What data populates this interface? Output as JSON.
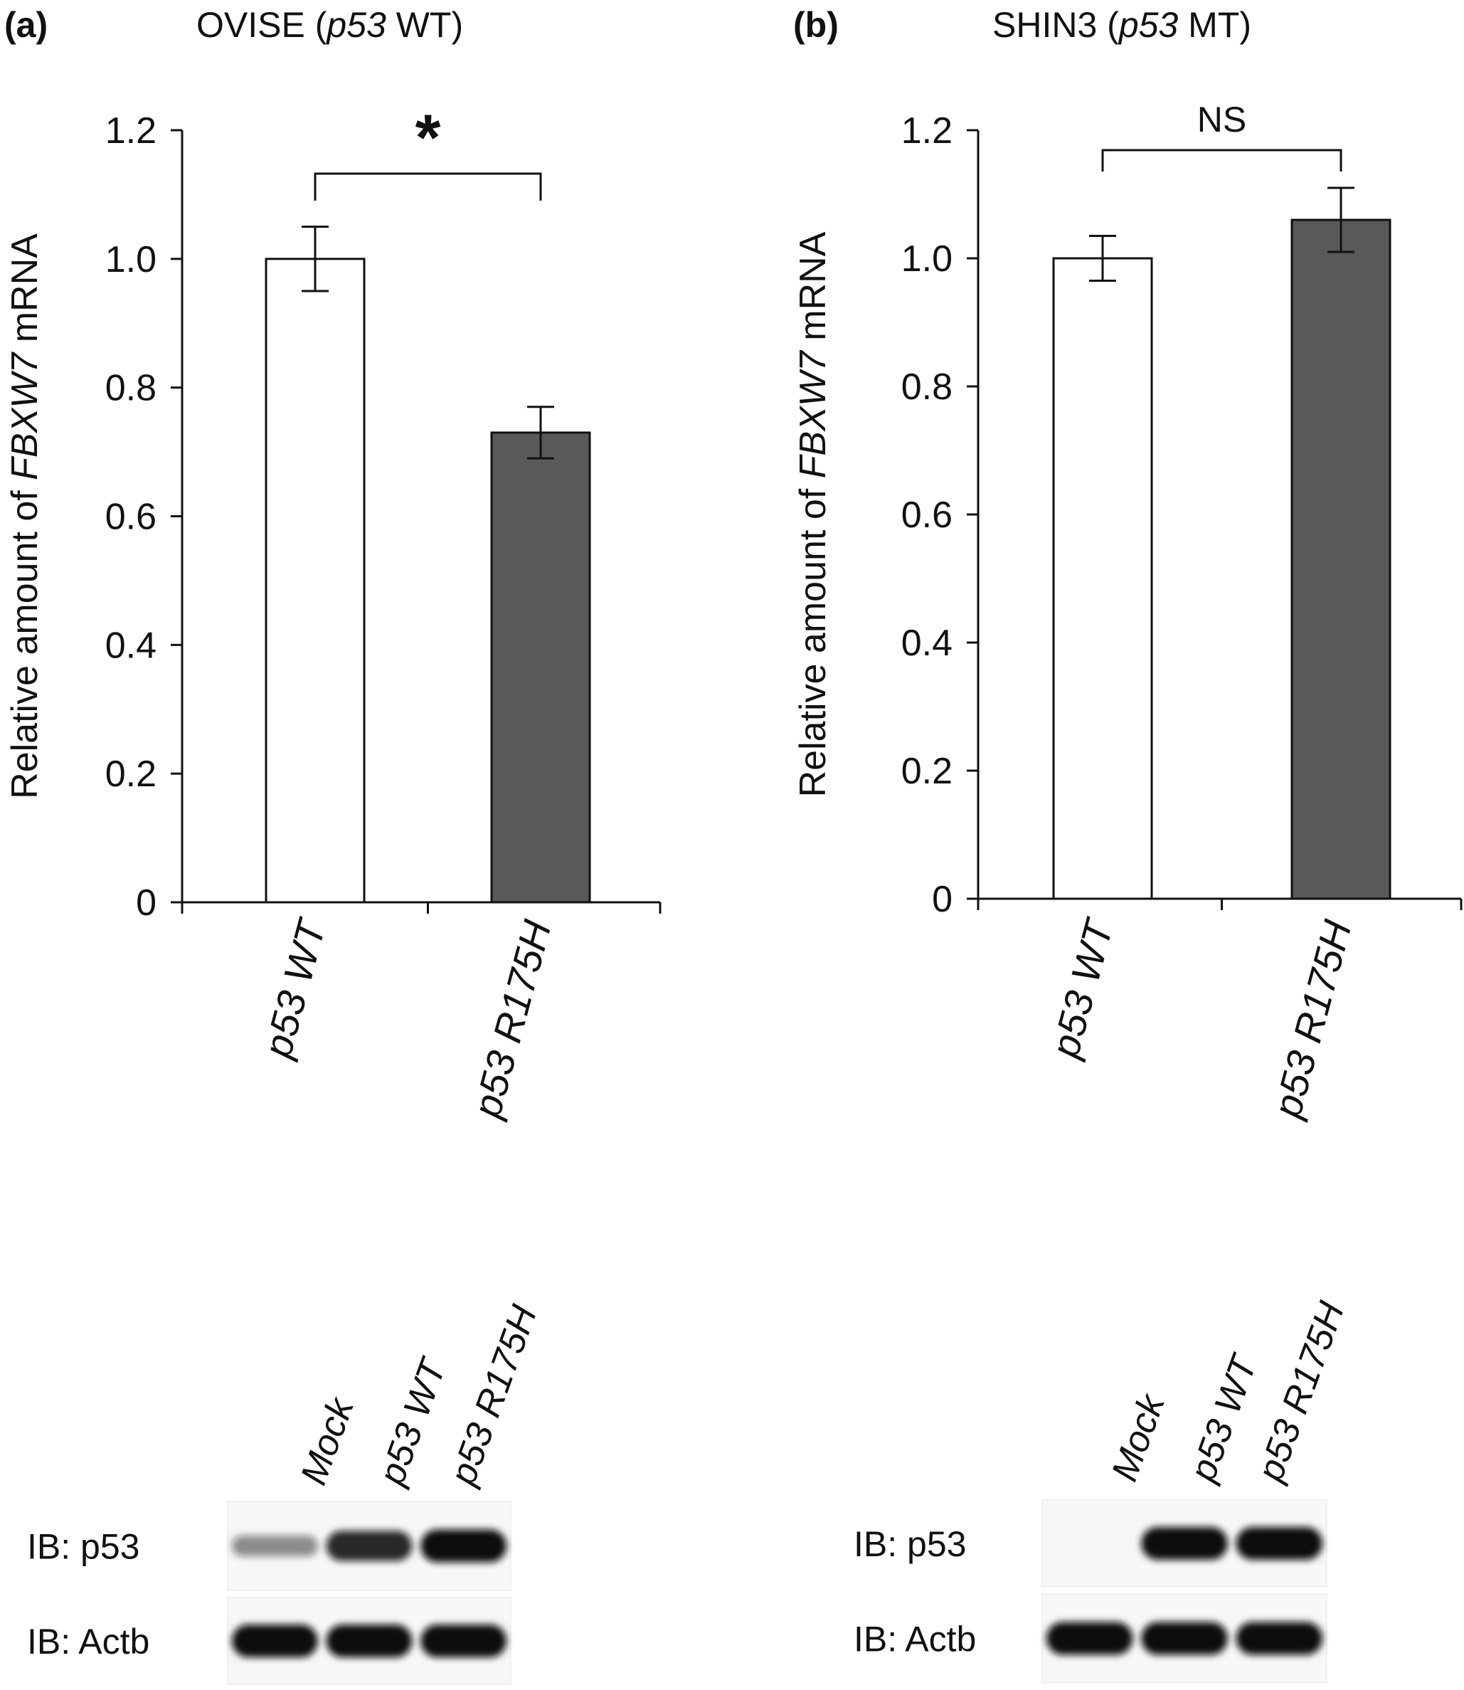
{
  "chart_data": [
    {
      "type": "bar",
      "panel": "(a)",
      "title": [
        "OVISE (",
        "p53",
        " WT)"
      ],
      "ylabel": [
        "Relative amount of ",
        "FBXW7",
        " mRNA"
      ],
      "categories": [
        [
          "p53",
          " WT"
        ],
        [
          "p53",
          " R175H"
        ]
      ],
      "values": [
        1.0,
        0.73
      ],
      "errors": [
        0.05,
        0.04
      ],
      "bar_colors": [
        "#ffffff",
        "#595959"
      ],
      "ylim": [
        0,
        1.2
      ],
      "yticks": [
        0,
        0.2,
        0.4,
        0.6,
        0.8,
        1.0,
        1.2
      ],
      "ytick_labels": [
        "0",
        "0.2",
        "0.4",
        "0.6",
        "0.8",
        "1.0",
        "1.2"
      ],
      "grid": false,
      "significance": "*",
      "blot": {
        "lanes": [
          "Mock",
          [
            "p53",
            " WT"
          ],
          [
            "p53",
            " R175H"
          ]
        ],
        "rows": [
          {
            "label": "IB: p53",
            "intensity": [
              0.3,
              0.85,
              1.0
            ]
          },
          {
            "label": "IB: Actb",
            "intensity": [
              1.0,
              1.0,
              1.0
            ]
          }
        ]
      }
    },
    {
      "type": "bar",
      "panel": "(b)",
      "title": [
        "SHIN3 (",
        "p53",
        " MT)"
      ],
      "ylabel": [
        "Relative amount of ",
        "FBXW7",
        " mRNA"
      ],
      "categories": [
        [
          "p53",
          " WT"
        ],
        [
          "p53",
          " R175H"
        ]
      ],
      "values": [
        1.0,
        1.06
      ],
      "errors": [
        0.035,
        0.05
      ],
      "bar_colors": [
        "#ffffff",
        "#595959"
      ],
      "ylim": [
        0,
        1.2
      ],
      "yticks": [
        0,
        0.2,
        0.4,
        0.6,
        0.8,
        1.0,
        1.2
      ],
      "ytick_labels": [
        "0",
        "0.2",
        "0.4",
        "0.6",
        "0.8",
        "1.0",
        "1.2"
      ],
      "grid": false,
      "significance": "NS",
      "blot": {
        "lanes": [
          "Mock",
          [
            "p53",
            " WT"
          ],
          [
            "p53",
            " R175H"
          ]
        ],
        "rows": [
          {
            "label": "IB: p53",
            "intensity": [
              0.0,
              1.0,
              1.0
            ]
          },
          {
            "label": "IB: Actb",
            "intensity": [
              1.0,
              1.0,
              1.0
            ]
          }
        ]
      }
    }
  ]
}
